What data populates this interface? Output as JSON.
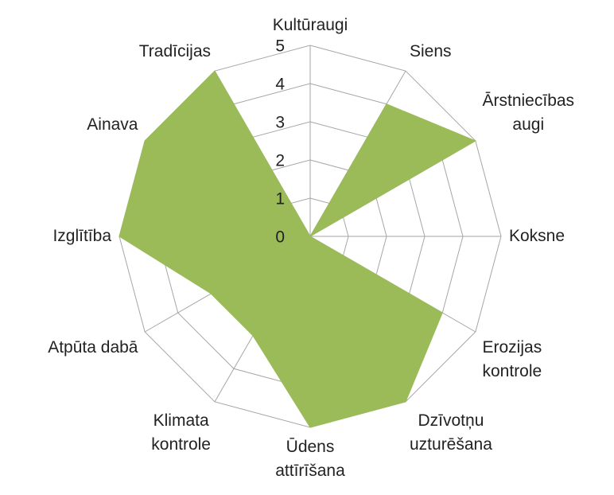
{
  "chart_data": {
    "type": "radar",
    "categories": [
      "Kultūraugi",
      "Siens",
      "Ārstniecības augi",
      "Koksne",
      "Erozijas kontrole",
      "Dzīvotņu uzturēšana",
      "Ūdens attīrīšana",
      "Klimata kontrole",
      "Atpūta dabā",
      "Izglītība",
      "Ainava",
      "Tradīcijas"
    ],
    "values": [
      0,
      4,
      5,
      0,
      4,
      5,
      5,
      3,
      3,
      5,
      5,
      5
    ],
    "color": "#9bbb59",
    "rlim": [
      0,
      5
    ],
    "rticks": [
      0,
      1,
      2,
      3,
      4,
      5
    ],
    "grid": true
  }
}
